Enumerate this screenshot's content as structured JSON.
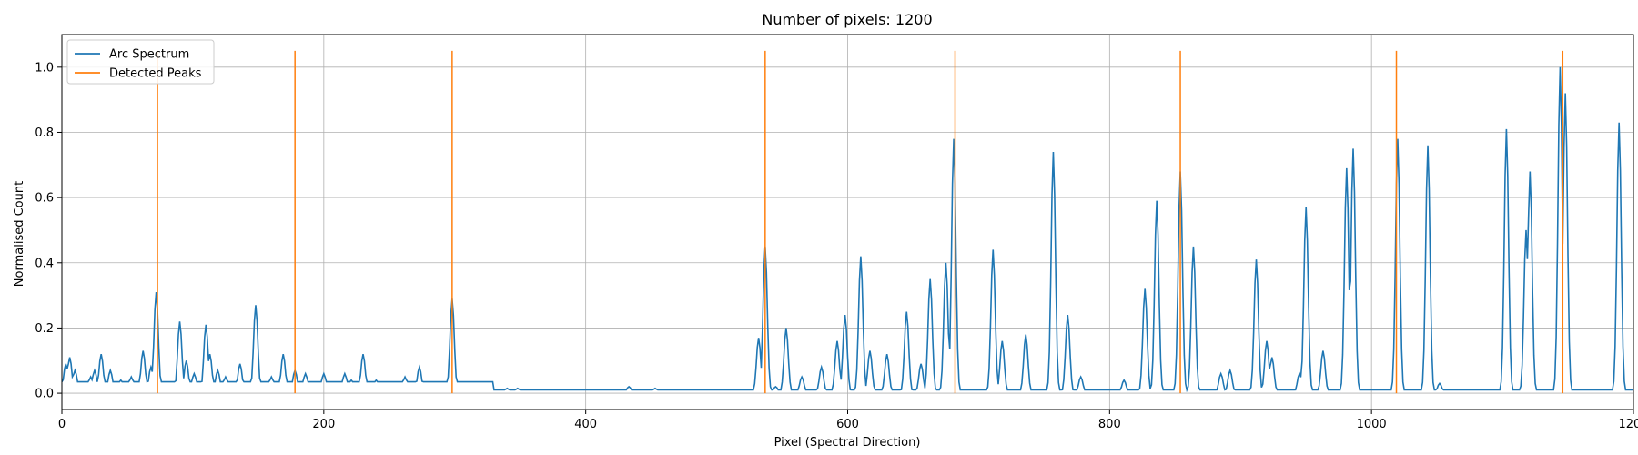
{
  "chart_data": {
    "type": "line",
    "title": "Number of pixels: 1200",
    "xlabel": "Pixel (Spectral Direction)",
    "ylabel": "Normalised Count",
    "xlim": [
      0,
      1200
    ],
    "ylim": [
      -0.05,
      1.1
    ],
    "xticks": [
      0,
      200,
      400,
      600,
      800,
      1000,
      1200
    ],
    "xtick_labels": [
      "0",
      "200",
      "400",
      "600",
      "800",
      "1000",
      "1200"
    ],
    "yticks": [
      0.0,
      0.2,
      0.4,
      0.6,
      0.8,
      1.0
    ],
    "ytick_labels": [
      "0.0",
      "0.2",
      "0.4",
      "0.6",
      "0.8",
      "1.0"
    ],
    "grid": true,
    "legend_placement": "top-left",
    "series": [
      {
        "name": "Arc Spectrum",
        "color": "#1f77b4",
        "baseline": 0.01,
        "peaks": [
          [
            3,
            0.09
          ],
          [
            6,
            0.11
          ],
          [
            10,
            0.07
          ],
          [
            22,
            0.05
          ],
          [
            25,
            0.07
          ],
          [
            30,
            0.12
          ],
          [
            37,
            0.07
          ],
          [
            45,
            0.04
          ],
          [
            53,
            0.05
          ],
          [
            62,
            0.13
          ],
          [
            68,
            0.08
          ],
          [
            72,
            0.31
          ],
          [
            90,
            0.22
          ],
          [
            95,
            0.1
          ],
          [
            101,
            0.06
          ],
          [
            110,
            0.21
          ],
          [
            113,
            0.12
          ],
          [
            119,
            0.07
          ],
          [
            125,
            0.05
          ],
          [
            136,
            0.09
          ],
          [
            148,
            0.27
          ],
          [
            160,
            0.05
          ],
          [
            169,
            0.12
          ],
          [
            178,
            0.07
          ],
          [
            186,
            0.06
          ],
          [
            200,
            0.06
          ],
          [
            216,
            0.06
          ],
          [
            221,
            0.04
          ],
          [
            230,
            0.12
          ],
          [
            240,
            0.04
          ],
          [
            253,
            0.03
          ],
          [
            262,
            0.05
          ],
          [
            273,
            0.08
          ],
          [
            298,
            0.29
          ],
          [
            310,
            0.03
          ],
          [
            325,
            0.015
          ],
          [
            340,
            0.015
          ],
          [
            348,
            0.015
          ],
          [
            360,
            0.01
          ],
          [
            433,
            0.02
          ],
          [
            453,
            0.015
          ],
          [
            532,
            0.17
          ],
          [
            537,
            0.45
          ],
          [
            545,
            0.02
          ],
          [
            553,
            0.2
          ],
          [
            565,
            0.05
          ],
          [
            580,
            0.08
          ],
          [
            592,
            0.16
          ],
          [
            598,
            0.24
          ],
          [
            610,
            0.42
          ],
          [
            617,
            0.13
          ],
          [
            630,
            0.12
          ],
          [
            645,
            0.25
          ],
          [
            656,
            0.09
          ],
          [
            663,
            0.35
          ],
          [
            675,
            0.4
          ],
          [
            681,
            0.78
          ],
          [
            711,
            0.44
          ],
          [
            718,
            0.16
          ],
          [
            736,
            0.18
          ],
          [
            757,
            0.74
          ],
          [
            768,
            0.24
          ],
          [
            778,
            0.05
          ],
          [
            811,
            0.04
          ],
          [
            827,
            0.32
          ],
          [
            836,
            0.59
          ],
          [
            854,
            0.68
          ],
          [
            864,
            0.45
          ],
          [
            885,
            0.06
          ],
          [
            892,
            0.07
          ],
          [
            912,
            0.41
          ],
          [
            920,
            0.16
          ],
          [
            924,
            0.11
          ],
          [
            945,
            0.06
          ],
          [
            950,
            0.57
          ],
          [
            963,
            0.13
          ],
          [
            981,
            0.69
          ],
          [
            986,
            0.75
          ],
          [
            1020,
            0.78
          ],
          [
            1043,
            0.76
          ],
          [
            1052,
            0.03
          ],
          [
            1095,
            0.01
          ],
          [
            1103,
            0.81
          ],
          [
            1118,
            0.5
          ],
          [
            1121,
            0.68
          ],
          [
            1144,
            1.0
          ],
          [
            1148,
            0.92
          ],
          [
            1189,
            0.83
          ]
        ]
      },
      {
        "name": "Detected Peaks",
        "color": "#ff7f0e",
        "x": [
          73,
          178,
          298,
          537,
          682,
          854,
          1019,
          1146
        ],
        "ymin": 0.0,
        "ymax": 1.05
      }
    ]
  }
}
